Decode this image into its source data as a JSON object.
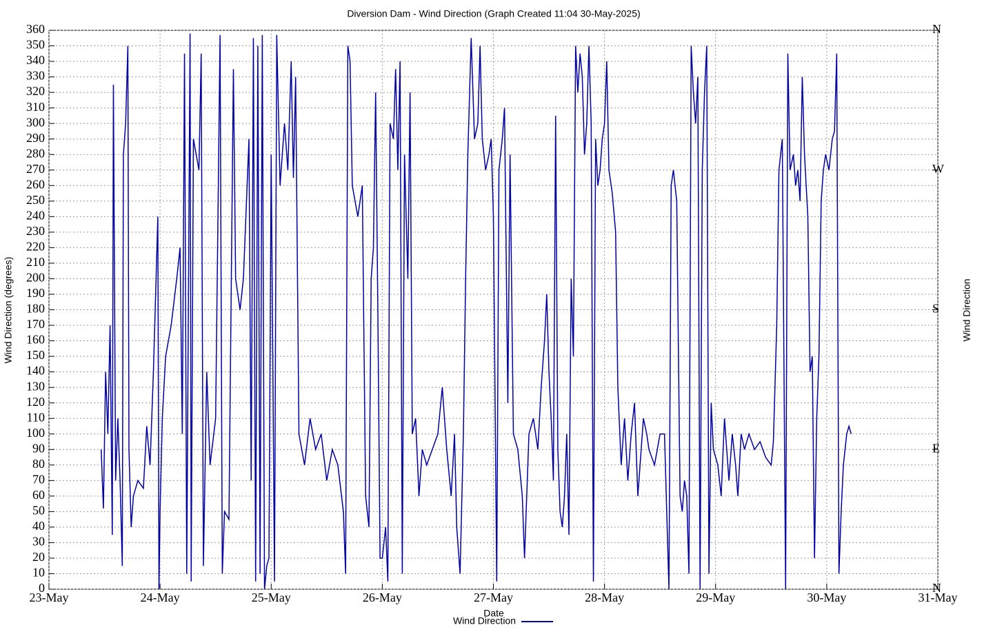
{
  "chart_data": {
    "type": "line",
    "title": "Diversion Dam - Wind Direction (Graph Created 11:04 30-May-2025)",
    "xlabel": "Date",
    "ylabel": "Wind Direction (degrees)",
    "y2label": "Wind Direction",
    "grid": true,
    "legend": "bottom",
    "xlim": [
      0,
      8
    ],
    "xticks": [
      {
        "value": 0,
        "label": "23-May"
      },
      {
        "value": 1,
        "label": "24-May"
      },
      {
        "value": 2,
        "label": "25-May"
      },
      {
        "value": 3,
        "label": "26-May"
      },
      {
        "value": 4,
        "label": "27-May"
      },
      {
        "value": 5,
        "label": "28-May"
      },
      {
        "value": 6,
        "label": "29-May"
      },
      {
        "value": 7,
        "label": "30-May"
      },
      {
        "value": 8,
        "label": "31-May"
      }
    ],
    "ylim": [
      0,
      360
    ],
    "yticks": [
      0,
      10,
      20,
      30,
      40,
      50,
      60,
      70,
      80,
      90,
      100,
      110,
      120,
      130,
      140,
      150,
      160,
      170,
      180,
      190,
      200,
      210,
      220,
      230,
      240,
      250,
      260,
      270,
      280,
      290,
      300,
      310,
      320,
      330,
      340,
      350,
      360
    ],
    "y2lim": [
      0,
      360
    ],
    "y2ticks": [
      {
        "value": 360,
        "label": "N"
      },
      {
        "value": 270,
        "label": "W"
      },
      {
        "value": 180,
        "label": "S"
      },
      {
        "value": 90,
        "label": "E"
      },
      {
        "value": 0,
        "label": "N"
      }
    ],
    "x": [
      0.47,
      0.49,
      0.51,
      0.53,
      0.55,
      0.57,
      0.58,
      0.6,
      0.62,
      0.64,
      0.66,
      0.67,
      0.69,
      0.71,
      0.72,
      0.74,
      0.76,
      0.8,
      0.85,
      0.88,
      0.91,
      0.94,
      0.96,
      0.98,
      0.99,
      1.0,
      1.02,
      1.05,
      1.1,
      1.15,
      1.18,
      1.2,
      1.22,
      1.24,
      1.27,
      1.28,
      1.3,
      1.35,
      1.37,
      1.39,
      1.42,
      1.45,
      1.5,
      1.54,
      1.56,
      1.58,
      1.62,
      1.66,
      1.68,
      1.72,
      1.75,
      1.8,
      1.82,
      1.84,
      1.86,
      1.88,
      1.9,
      1.92,
      1.94,
      1.96,
      1.98,
      2.0,
      2.03,
      2.05,
      2.08,
      2.12,
      2.15,
      2.18,
      2.2,
      2.22,
      2.25,
      2.3,
      2.35,
      2.4,
      2.45,
      2.5,
      2.55,
      2.6,
      2.65,
      2.67,
      2.69,
      2.71,
      2.73,
      2.78,
      2.82,
      2.85,
      2.88,
      2.9,
      2.92,
      2.94,
      2.96,
      2.98,
      3.0,
      3.03,
      3.05,
      3.07,
      3.1,
      3.12,
      3.14,
      3.16,
      3.18,
      3.2,
      3.23,
      3.25,
      3.27,
      3.3,
      3.33,
      3.36,
      3.4,
      3.45,
      3.5,
      3.54,
      3.58,
      3.62,
      3.65,
      3.67,
      3.7,
      3.73,
      3.75,
      3.77,
      3.8,
      3.83,
      3.86,
      3.88,
      3.9,
      3.93,
      3.96,
      3.98,
      4.0,
      4.03,
      4.05,
      4.08,
      4.1,
      4.13,
      4.15,
      4.18,
      4.22,
      4.26,
      4.28,
      4.32,
      4.36,
      4.4,
      4.43,
      4.46,
      4.48,
      4.5,
      4.52,
      4.54,
      4.56,
      4.58,
      4.6,
      4.62,
      4.64,
      4.66,
      4.68,
      4.7,
      4.72,
      4.74,
      4.76,
      4.78,
      4.8,
      4.82,
      4.84,
      4.86,
      4.88,
      4.9,
      4.92,
      4.94,
      4.96,
      4.98,
      5.0,
      5.02,
      5.04,
      5.07,
      5.1,
      5.12,
      5.15,
      5.18,
      5.21,
      5.24,
      5.27,
      5.3,
      5.32,
      5.35,
      5.38,
      5.4,
      5.45,
      5.5,
      5.54,
      5.58,
      5.6,
      5.62,
      5.65,
      5.68,
      5.7,
      5.72,
      5.74,
      5.76,
      5.78,
      5.8,
      5.82,
      5.84,
      5.86,
      5.88,
      5.9,
      5.92,
      5.94,
      5.96,
      5.98,
      6.02,
      6.05,
      6.08,
      6.1,
      6.12,
      6.15,
      6.18,
      6.2,
      6.23,
      6.26,
      6.3,
      6.35,
      6.4,
      6.45,
      6.5,
      6.52,
      6.55,
      6.57,
      6.6,
      6.63,
      6.65,
      6.67,
      6.7,
      6.72,
      6.74,
      6.76,
      6.78,
      6.8,
      6.83,
      6.85,
      6.87,
      6.89,
      6.91,
      6.93,
      6.95,
      6.97,
      6.99,
      7.02,
      7.05,
      7.07,
      7.09,
      7.11,
      7.13,
      7.15,
      7.18,
      7.2,
      7.22
    ],
    "series": [
      {
        "name": "Wind Direction",
        "color": "#0000a0",
        "values": [
          90,
          52,
          140,
          100,
          170,
          35,
          325,
          70,
          110,
          70,
          15,
          280,
          300,
          350,
          90,
          40,
          60,
          70,
          65,
          105,
          80,
          140,
          190,
          240,
          0,
          50,
          110,
          150,
          170,
          200,
          220,
          100,
          345,
          10,
          358,
          5,
          290,
          270,
          345,
          15,
          140,
          80,
          110,
          357,
          10,
          50,
          45,
          335,
          200,
          180,
          200,
          290,
          70,
          355,
          5,
          350,
          10,
          357,
          0,
          15,
          20,
          280,
          5,
          357,
          260,
          300,
          270,
          340,
          265,
          330,
          100,
          80,
          110,
          90,
          100,
          70,
          90,
          80,
          50,
          10,
          350,
          340,
          260,
          240,
          260,
          60,
          40,
          200,
          220,
          320,
          180,
          20,
          20,
          40,
          5,
          300,
          290,
          335,
          270,
          340,
          10,
          280,
          200,
          320,
          100,
          110,
          60,
          90,
          80,
          90,
          100,
          130,
          90,
          60,
          100,
          40,
          10,
          100,
          200,
          280,
          355,
          290,
          300,
          350,
          290,
          270,
          280,
          290,
          240,
          5,
          270,
          290,
          310,
          120,
          280,
          100,
          90,
          60,
          20,
          100,
          110,
          90,
          130,
          160,
          190,
          140,
          110,
          70,
          305,
          90,
          50,
          40,
          60,
          100,
          35,
          200,
          150,
          350,
          320,
          345,
          330,
          280,
          300,
          350,
          300,
          5,
          290,
          260,
          270,
          290,
          300,
          340,
          270,
          255,
          230,
          130,
          80,
          110,
          70,
          100,
          120,
          60,
          80,
          110,
          100,
          90,
          80,
          100,
          100,
          0,
          260,
          270,
          250,
          60,
          50,
          70,
          60,
          10,
          350,
          320,
          300,
          330,
          0,
          270,
          320,
          350,
          10,
          120,
          90,
          80,
          60,
          110,
          90,
          70,
          100,
          80,
          60,
          100,
          90,
          100,
          90,
          95,
          85,
          80,
          95,
          170,
          270,
          290,
          0,
          345,
          270,
          280,
          260,
          270,
          250,
          330,
          280,
          240,
          140,
          150,
          20,
          110,
          150,
          250,
          270,
          280,
          270,
          290,
          295,
          345,
          10,
          50,
          80,
          100,
          105,
          100
        ]
      }
    ]
  }
}
